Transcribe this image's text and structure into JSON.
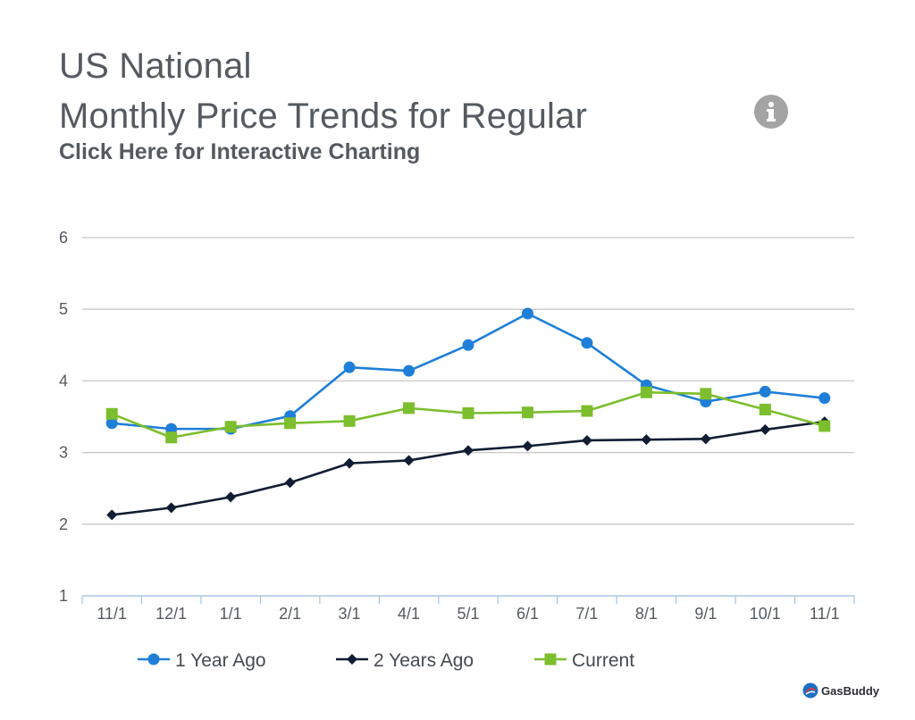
{
  "header": {
    "title_line1": "US National",
    "title_line2": "Monthly Price Trends for Regular",
    "subtitle_link": "Click Here for Interactive Charting"
  },
  "brand": {
    "name": "GasBuddy"
  },
  "colors": {
    "one_year": "#1f7fd8",
    "two_years": "#111d33",
    "current": "#7cbe2d",
    "grid": "#c8c8c8",
    "axis": "#a9c8e4"
  },
  "chart_data": {
    "type": "line",
    "title": "Monthly Price Trends for Regular",
    "xlabel": "",
    "ylabel": "",
    "ylim": [
      1,
      6
    ],
    "yticks": [
      "1",
      "2",
      "3",
      "4",
      "5",
      "6"
    ],
    "categories": [
      "11/1",
      "12/1",
      "1/1",
      "2/1",
      "3/1",
      "4/1",
      "5/1",
      "6/1",
      "7/1",
      "8/1",
      "9/1",
      "10/1",
      "11/1"
    ],
    "series": [
      {
        "name": "1 Year Ago",
        "marker": "circle",
        "values": [
          3.41,
          3.33,
          3.33,
          3.51,
          4.19,
          4.14,
          4.5,
          4.94,
          4.53,
          3.94,
          3.71,
          3.85,
          3.76
        ]
      },
      {
        "name": "2 Years Ago",
        "marker": "diamond",
        "values": [
          2.13,
          2.23,
          2.38,
          2.58,
          2.85,
          2.89,
          3.03,
          3.09,
          3.17,
          3.18,
          3.19,
          3.32,
          3.43
        ]
      },
      {
        "name": "Current",
        "marker": "square",
        "values": [
          3.54,
          3.21,
          3.36,
          3.41,
          3.44,
          3.62,
          3.55,
          3.56,
          3.58,
          3.84,
          3.82,
          3.6,
          3.37
        ]
      }
    ],
    "legend": "bottom",
    "grid": true
  }
}
